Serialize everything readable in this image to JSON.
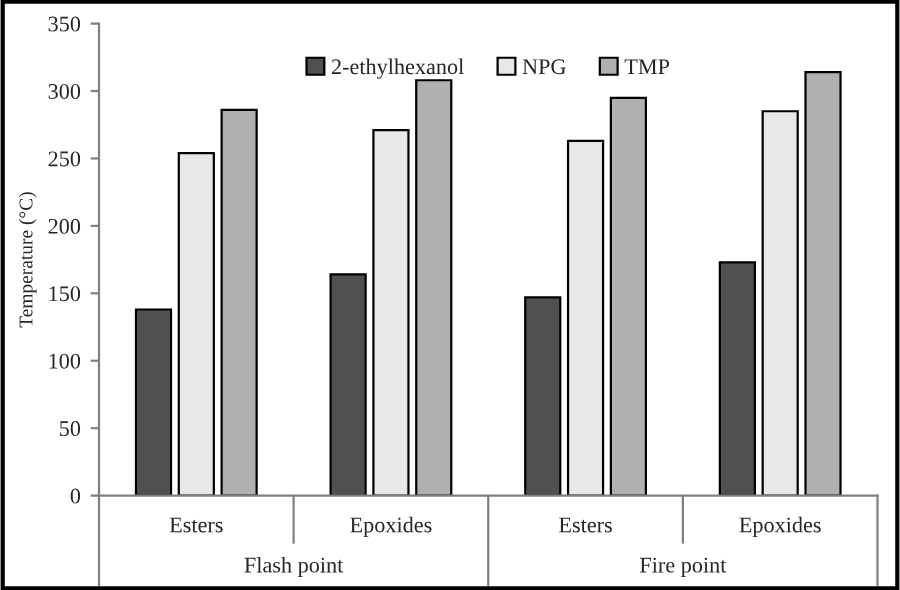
{
  "chart_data": {
    "type": "bar",
    "ylabel": "Temperature (°C)",
    "categories": [
      "Esters",
      "Epoxides",
      "Esters",
      "Epoxides"
    ],
    "series": [
      {
        "name": "2-ethylhexanol",
        "color": "#505050",
        "values": [
          138,
          164,
          147,
          173
        ]
      },
      {
        "name": "NPG",
        "color": "#e8e8e8",
        "values": [
          254,
          271,
          263,
          285
        ]
      },
      {
        "name": "TMP",
        "color": "#b0b0b0",
        "values": [
          286,
          308,
          295,
          314
        ]
      }
    ],
    "annotations": [
      "Flash point",
      "Fire point"
    ],
    "ylim": [
      0,
      350
    ],
    "yticks": [
      0,
      50,
      100,
      150,
      200,
      250,
      300,
      350
    ],
    "grid": false,
    "legend": "top"
  }
}
